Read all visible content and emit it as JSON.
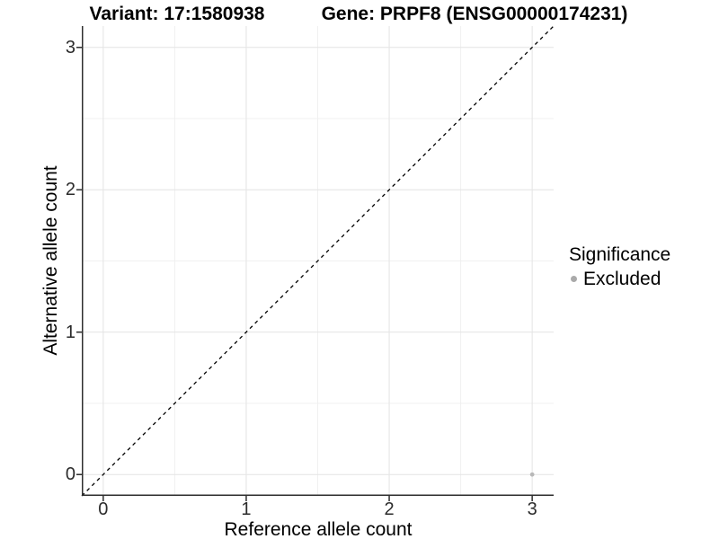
{
  "chart_data": {
    "type": "scatter",
    "title_left": "Variant: 17:1580938",
    "title_right": "Gene: PRPF8 (ENSG00000174231)",
    "xlabel": "Reference allele count",
    "ylabel": "Alternative allele count",
    "xlim": [
      -0.15,
      3.15
    ],
    "ylim": [
      -0.15,
      3.15
    ],
    "x_ticks": [
      0,
      1,
      2,
      3
    ],
    "y_ticks": [
      0,
      1,
      2,
      3
    ],
    "x_minor_ticks": [
      0.5,
      1.5,
      2.5
    ],
    "y_minor_ticks": [
      0.5,
      1.5,
      2.5
    ],
    "grid": true,
    "identity_line": {
      "style": "dashed",
      "color": "#000000",
      "equation": "y = x"
    },
    "series": [
      {
        "name": "Excluded",
        "color": "#b8b8b8",
        "points": [
          {
            "x": 3,
            "y": 0
          }
        ]
      }
    ],
    "legend": {
      "title": "Significance",
      "position": "right",
      "items": [
        {
          "label": "Excluded",
          "color": "#aaaaaa"
        }
      ]
    },
    "colors": {
      "major_grid": "#e4e4e4",
      "minor_grid": "#f0f0f0",
      "axis_line": "#2e2e2e",
      "tick_mark": "#2e2e2e"
    }
  }
}
